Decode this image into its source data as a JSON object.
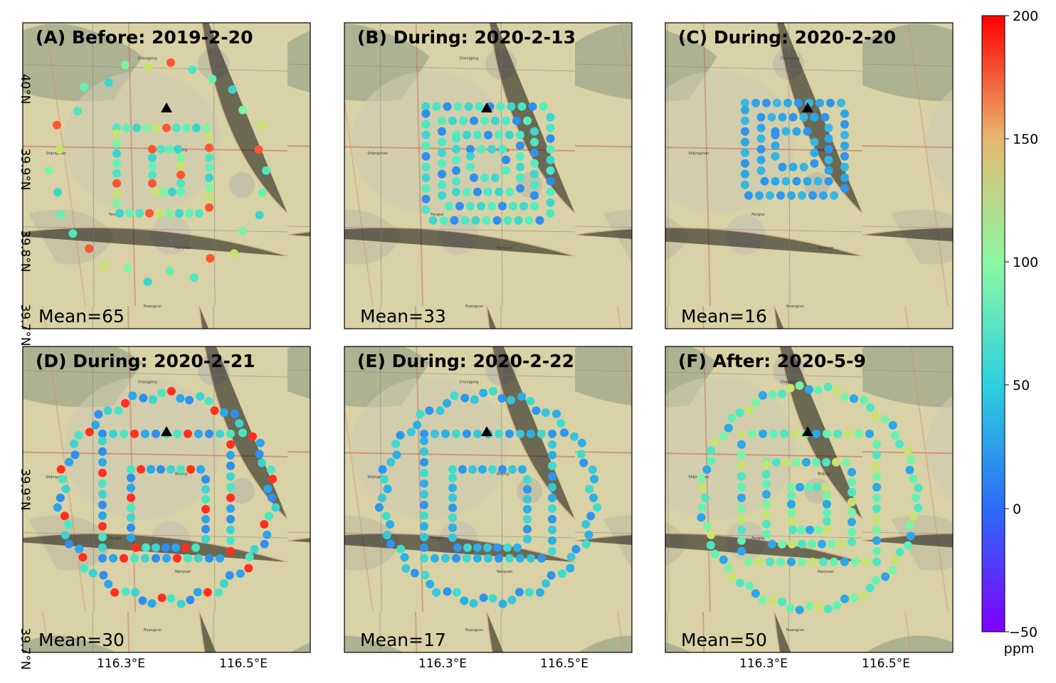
{
  "panels": [
    {
      "title": "(A) Before: 2019-2-20",
      "mean": "Mean=65"
    },
    {
      "title": "(B) During: 2020-2-13",
      "mean": "Mean=33"
    },
    {
      "title": "(C) During: 2020-2-20",
      "mean": "Mean=16"
    },
    {
      "title": "(D) During: 2020-2-21",
      "mean": "Mean=30"
    },
    {
      "title": "(E) During: 2020-2-22",
      "mean": "Mean=17"
    },
    {
      "title": "(F) After: 2020-5-9",
      "mean": "Mean=50"
    }
  ],
  "axes": {
    "lat_ticks_top": [
      "40°N",
      "39.9°N",
      "39.8°N",
      "39.7°N"
    ],
    "lat_ticks_bottom": [
      "39.9°N",
      "39.7°N"
    ],
    "lon_ticks": [
      "116.3°E",
      "116.5°E"
    ]
  },
  "colorbar": {
    "unit": "ppm",
    "ticks": [
      "200",
      "150",
      "100",
      "50",
      "0",
      "−50"
    ],
    "min": -50,
    "max": 200,
    "colormap": "rainbow"
  },
  "map_labels": [
    "Beijing",
    "Shijingshan",
    "Fengtai",
    "Nanyuan",
    "Huangcun",
    "Changping"
  ],
  "colors": {
    "station_marker": "#000000",
    "map_base": "#d8d2a6"
  },
  "chart_data": [
    {
      "type": "scatter",
      "panel": "A",
      "title": "(A) Before: 2019-2-20",
      "mean_ppm": 65
    },
    {
      "type": "scatter",
      "panel": "B",
      "title": "(B) During: 2020-2-13",
      "mean_ppm": 33
    },
    {
      "type": "scatter",
      "panel": "C",
      "title": "(C) During: 2020-2-20",
      "mean_ppm": 16
    },
    {
      "type": "scatter",
      "panel": "D",
      "title": "(D) During: 2020-2-21",
      "mean_ppm": 30
    },
    {
      "type": "scatter",
      "panel": "E",
      "title": "(E) During: 2020-2-22",
      "mean_ppm": 17
    },
    {
      "type": "scatter",
      "panel": "F",
      "title": "(F) After: 2020-5-9",
      "mean_ppm": 50
    }
  ]
}
